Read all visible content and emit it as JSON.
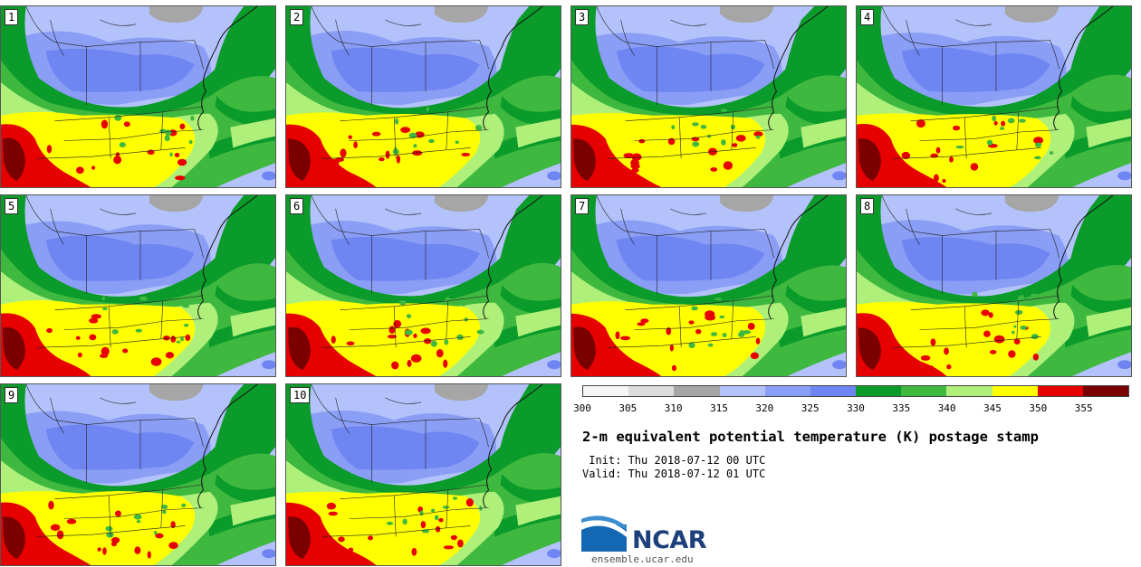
{
  "panels": [
    {
      "label": "1"
    },
    {
      "label": "2"
    },
    {
      "label": "3"
    },
    {
      "label": "4"
    },
    {
      "label": "5"
    },
    {
      "label": "6"
    },
    {
      "label": "7"
    },
    {
      "label": "8"
    },
    {
      "label": "9"
    },
    {
      "label": "10"
    }
  ],
  "colorbar": {
    "ticks": [
      "300",
      "305",
      "310",
      "315",
      "320",
      "325",
      "330",
      "335",
      "340",
      "345",
      "350",
      "355"
    ],
    "colors": [
      "#f5f5f5",
      "#dcdcdc",
      "#a6a6a6",
      "#b4c2fb",
      "#8a9ef6",
      "#6f86f2",
      "#0b9b2a",
      "#3fb83f",
      "#aef07a",
      "#ffff00",
      "#e60000",
      "#7a0000"
    ]
  },
  "title": "2-m equivalent potential temperature (K) postage stamp",
  "init": " Init: Thu 2018-07-12 00 UTC",
  "valid": "Valid: Thu 2018-07-12 01 UTC",
  "logo": {
    "text": "NCAR",
    "site": "ensemble.ucar.edu"
  }
}
